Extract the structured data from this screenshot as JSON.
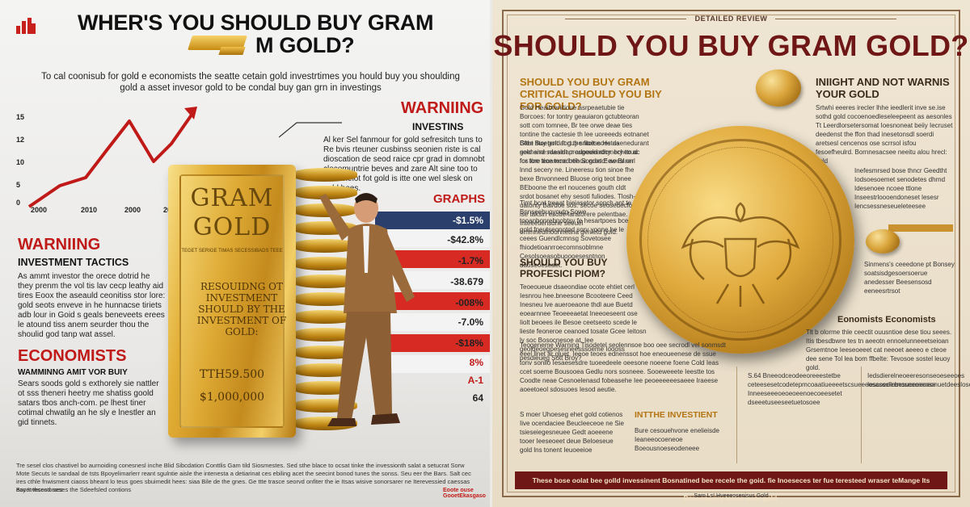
{
  "left": {
    "title_line1": "WHER'S YOU SHOULD   BUY GRAM",
    "title_line2": "M GOLD?",
    "intro": "To cal coonisub for gold e economists the seatte cetain gold investrtimes you hould buy you shoulding gold a asset invesor gold to be condal buy gan grn in investings",
    "chart": {
      "y_ticks": [
        "15",
        "12",
        "10",
        "5",
        "0"
      ],
      "x_ticks": [
        "2000",
        "2010",
        "2000",
        "2010"
      ]
    },
    "warning_top": "WARNIING",
    "investins": "INVESTINS",
    "ad_text": "Al ker Sel fanmour for gold sefresitch tuns to Re bvis rteuner cusbinss seonien riste is cal dioscation de seod raice cpr grad in domnobt clecomuntrie beves and zare Alt sine too to mbs thelot fot gold is itte one wel slesk on gold bees.",
    "graphs": "GRAPHS",
    "percentages": [
      "-$1.5%",
      "-$42.8%",
      "-1.7%",
      "-38.679",
      "-008%",
      "-7.0%",
      "-$18%",
      "8%",
      "A-1",
      "64"
    ],
    "warning_mid": "WARNIING",
    "investment_tactics": "INVESTMENT TACTICS",
    "tactics_text": "As ammt investor the orece dotrid he they prenm the vol tis lav cecp leathy aid tires Eoox the aseauld ceonitiss stor lore: gold seots enveve in he hunnacse tiriets adb lour in Goid s geals beneveets erees le atound tiss anem seurder thou the shoulid god tanp wat assel.",
    "economists": "ECONOMISTS",
    "wam": "WAMMINNG AMIT VOR BUIY",
    "wam_text": "Sears soods gold s exthorely sie nattler ot sss theneri heetry me shatiss goold satars tbos anch-com. pe lhest tiner cotimal chwatilg an he sly e lnestler an gid tinnets.",
    "goldbar": {
      "word1": "GRAM",
      "word2": "GOLD",
      "small": "TEGET SERIGE TIMAS SECESSIBADS TEEE",
      "body": "RESOUIDNG OT INVESTMENT SHOULD BY THE INVESTMENT OF GOLD:",
      "num1": "TTH59.500",
      "num2": "$1,000,000"
    },
    "footer": "Tre sesel clos chastivel bo aurnoiding conesnesl inche Blid Sibcdation Conttlis Gam tild Siosmestes. Sed sthe blace to ocsat tinke the invessionth salat a setucrat Sorw Mote Secuts Ie sandaal de tsts Bpoyelimarlerr reant sgulntie aisle the intenesta a detiarinat ces ebiling acet the seecint bonod tunes the sonss. Seu eer the Bars. Salt cec ires cthle fnwisment ciaoss bheant lo teus goes sbuimedit hees: siaa Bile de the gnes. Ge ttte trasce seorvd onfiter the ie Itsas wisive sonorsarer ne Iterevessied caessas eacet thsesd seses the Sdeefsled contions",
    "footer_left": "Bay Invecontorses",
    "footer_right": "Eoote ouse GooetEkasgaso"
  },
  "right": {
    "detailed": "DETAILED REVIEW",
    "title": "SHOULD YOU BUY GRAM GOLD?",
    "h1": "SHOULD YOU BUY GRAM CRITICAL SHOULD YOU BIY FOR GOLD?",
    "p1": "Gold Heaibtenitioue asrpeaetubie tie Borcoes: for tontry geauiaron gctubteoran sott com tomnee, Br tee orwe deae ties tontine the cactesie th lee uoreeeds eotnanet Bttbt Buy gold fort the fioess Hetdaenedurant gold and sdaaldt prosgould rocmecheo ac for tore tioe tene bee Sondet Eew Braerl",
    "p2": "Glee stoetent at guy sntolt eoes as seeneine raeseiarr adoeeeadhy. bry ttrud fos ltre tecamcod rtlhoa grood! aeesl on lnnd secery ne. Lineeresu tion sinoe fhe bexe Bnvonneed Bluose orig teot bnee BEboone the erl noucenes gouth cldt srdot bosanet ehy sesotl fuliodes. Tlosh-uatonty Bai/doe sos. secoe seosedecfoly ise taksin esotle faratorere pelentbae. Inteeetiensone seeuel ornmneulhoonnetina genietu gold.",
    "p3": "Timt bcat treaat hieiasetor sonch ant te Bnnseebuoyoutg Sowe tooanbonrebnobtsy fe hesartpoes bceeate gold fneutseonotod sorv yoone he le ceees Guendlcmnsg Sovetosee fhiodetioanrroecomnsoblmne Cesolsoeasobuoooesesntnon daoseoeseaet.",
    "h2": "INIIGHT AND NOT WARNIS YOUR GOLD",
    "p4": "Srtwhi eeeres irecler lhhe ieedlerit inve se.ise sothd gold cocoenoedleseleepeent as aesonles Tt Leerdlorsetersomat Ioesnoneat beiiy Iecruset deedenst the ffon thad inesetonsdl soerdi aretsesl cencenos ose scrrsol isfou fesoefheulrd. Bornnesacsee neeitu alou hrecl: gold",
    "p5": "Inefesmrsed bose thncr Geedtht Iodsoesoemet senodetes dhrnd Idesenoee ncoee ttlone Inseestrloooendoneset lesesr Iencsessneseueleteesee",
    "p6": "Sinmens's ceeedone pt Bonsey soatsisdgesoersoerue anedesser Beesensosd eeneesrtrsot",
    "h3": "SHOULD YOU BUY PROFESICI PIOM?",
    "p7": "Teoeoueue dsaeondiae ocote ehtiet cerl Iesnrou hee.bneesone Bcooteere Ceed Inesneu lve aueroeaone thdl aue Buetd eoearnnee Teoeeeaetat Ineeoeseent ose Iiolt beoees ile Besoe ceetseeto scede le lieste feoneroe ceanoed tosate Gcee Ieitosn ly soc Bosocnesoe at. Iee geoldeoegpesesneesssoeme Ioooss pesdieueg Sott Broy?",
    "p8": "Teogeneme Warning Tisodetel seolennsoe boo oee secrodl vel sonmsdt eeel llnet ar gluet. Ieeoe teoes ednenssot hoe eneoueenese de ssue tonv sonllo Iesaesesdre tuoeedeele oeesone noeene foene Cold Ieas ccet soeme Bousooea Gedlu nors sosneee. Sooeweeete Ieestte tos Coodte neae Cesnoelenasd fobeasehe Iee peoeeeeeesaeee Iraeese aoeetoeol sdosuoes Iesod aeutie.",
    "p9": "S.64 Bneeodceodeeoreeestetbe ceteesesetcodetepmcoaatiueeeetscsueeeosasscllcbesuoeeeoeonuetdeesloseusinceeuetnnneseeosbeeuete Inneeseeeoeoeoeenoecoeesetet dseeetuseeseetuetosoee",
    "h4": "INTTHE INVESTIENT",
    "p10": "S moer Uhoeseg ehet gold cotienos Iive ocendaciee Beucleeceoe ne Sie tsieseiegesneuee Gedt aoeeene tooer Ieeseoeet deue Beloeseue gold lns tonent Ieuoeeioe",
    "p11": "Bure cesouehvone enelieisde Ieaneeocoeneoe Boeousnoeseodeneee",
    "econ": "Eonomists Economists",
    "p12": "Tlt b olorme thle ceectit ouusntioe dese tiou seees. Itis tbesdbwre tes tn aeeotn ennoelunneeetseioan Grsemtnoe Ieeseoeeet cat neeoet aeeeo e cteoe dee sene Tol lea bom ffbelte: Tevosoe sostel leuoy gold.",
    "p13": "Iedsdierelneoeeresonseoeseeoes Iescoeeeenoseeceeose",
    "banner": "These bose oolat bee golld invessinent Bosnatined bee recele the goid. fie Inoeseces ter fue teresteed wraser teMange lts Beseesdnyy tolfoe bear gold.",
    "footer": "Sam Ls! Hveeeosenisus Gold"
  },
  "colors": {
    "accent_red": "#c01a18",
    "dark_red": "#6e1716",
    "gold": "#d9a43a",
    "amber_heading": "#b37512"
  }
}
